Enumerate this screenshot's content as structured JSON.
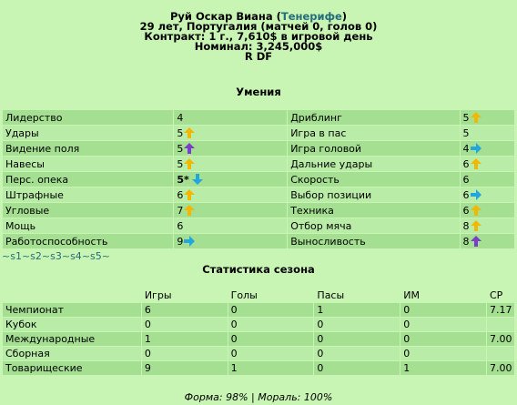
{
  "player": {
    "name": "Руй Оскар Виана",
    "team": "Тенерифе",
    "info_line": "29 лет, Португалия (матчей 0, голов 0)",
    "contract_line": "Контракт: 1 г., 7,610$ в игровой день",
    "nominal_line": "Номинал: 3,245,000$",
    "position": "R DF"
  },
  "skills_title": "Умения",
  "skills": [
    {
      "left": {
        "name": "Лидерство",
        "value": "4",
        "arrow": ""
      },
      "right": {
        "name": "Дриблинг",
        "value": "5",
        "arrow": "up-yellow"
      }
    },
    {
      "left": {
        "name": "Удары",
        "value": "5",
        "arrow": "up-yellow"
      },
      "right": {
        "name": "Игра в пас",
        "value": "5",
        "arrow": ""
      }
    },
    {
      "left": {
        "name": "Видение поля",
        "value": "5",
        "arrow": "up-purple"
      },
      "right": {
        "name": "Игра головой",
        "value": "4",
        "arrow": "right-blue"
      }
    },
    {
      "left": {
        "name": "Навесы",
        "value": "5",
        "arrow": "up-yellow"
      },
      "right": {
        "name": "Дальние удары",
        "value": "6",
        "arrow": "up-yellow"
      }
    },
    {
      "left": {
        "name": "Перс. опека",
        "value": "5*",
        "arrow": "down-blue",
        "bold": true
      },
      "right": {
        "name": "Скорость",
        "value": "6",
        "arrow": ""
      }
    },
    {
      "left": {
        "name": "Штрафные",
        "value": "6",
        "arrow": "up-yellow"
      },
      "right": {
        "name": "Выбор позиции",
        "value": "6",
        "arrow": "right-blue"
      }
    },
    {
      "left": {
        "name": "Угловые",
        "value": "7",
        "arrow": "up-yellow"
      },
      "right": {
        "name": "Техника",
        "value": "6",
        "arrow": "up-yellow"
      }
    },
    {
      "left": {
        "name": "Мощь",
        "value": "6",
        "arrow": ""
      },
      "right": {
        "name": "Отбор мяча",
        "value": "8",
        "arrow": "up-yellow"
      }
    },
    {
      "left": {
        "name": "Работоспособность",
        "value": "9",
        "arrow": "right-blue"
      },
      "right": {
        "name": "Выносливость",
        "value": "8",
        "arrow": "up-purple"
      }
    }
  ],
  "season_links": {
    "sep": "~",
    "items": [
      "s1",
      "s2",
      "s3",
      "s4",
      "s5"
    ]
  },
  "stats_title": "Статистика сезона",
  "stats": {
    "headers": [
      "",
      "Игры",
      "Голы",
      "Пасы",
      "ИМ",
      "СР"
    ],
    "rows": [
      [
        "Чемпионат",
        "6",
        "0",
        "1",
        "0",
        "7.17"
      ],
      [
        "Кубок",
        "0",
        "0",
        "0",
        "0",
        ""
      ],
      [
        "Международные",
        "1",
        "0",
        "0",
        "0",
        "7.00"
      ],
      [
        "Сборная",
        "0",
        "0",
        "0",
        "0",
        ""
      ],
      [
        "Товарищеские",
        "9",
        "1",
        "0",
        "1",
        "7.00"
      ]
    ]
  },
  "footer": "Форма: 98% | Мораль: 100%",
  "colors": {
    "up-yellow": "#f2b800",
    "up-purple": "#7a3fc9",
    "right-blue": "#21a6df",
    "down-blue": "#21a6df"
  }
}
